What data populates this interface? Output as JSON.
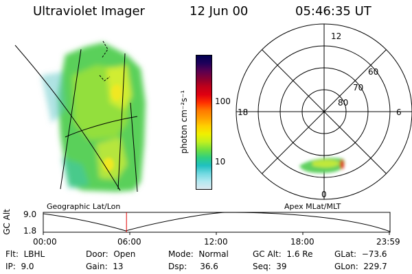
{
  "header": {
    "title": "Ultraviolet Imager",
    "date": "12 Jun 00",
    "time": "05:46:35 UT"
  },
  "captions": {
    "left": "Geographic Lat/Lon",
    "right": "Apex MLat/MLT"
  },
  "colorbar": {
    "label": "photon cm⁻²s⁻¹",
    "ticks": [
      "100",
      "10"
    ],
    "colors": [
      "#000050",
      "#20005a",
      "#5a0050",
      "#8a0030",
      "#c0001a",
      "#e00010",
      "#ff3000",
      "#ff7a00",
      "#ffa000",
      "#ffd000",
      "#f0f000",
      "#c0f020",
      "#70e040",
      "#30d080",
      "#20c0c0",
      "#70d8e0",
      "#b0e8f0",
      "#dce8f0"
    ]
  },
  "polar": {
    "mlt_labels": [
      "12",
      "18",
      "6",
      "0"
    ],
    "lat_labels": [
      "60",
      "70",
      "80"
    ]
  },
  "timeline": {
    "ylabel": "GC Alt",
    "ymax": "9.0",
    "ymin": "1.8",
    "xticks": [
      "00:00",
      "06:00",
      "12:00",
      "18:00",
      "23:59"
    ],
    "current_fraction": 0.24
  },
  "info": {
    "flt": "Flt:  LBHL",
    "ip": "IP:  9.0",
    "door": "Door:  Open",
    "gain": "Gain:  13",
    "mode": "Mode:  Normal",
    "dsp": "Dsp:     36.6",
    "gcalt": "GC Alt:  1.6 Re",
    "seq": "Seq:  39",
    "glat": "GLat:  −73.6",
    "glon": "GLon:  229.7"
  }
}
